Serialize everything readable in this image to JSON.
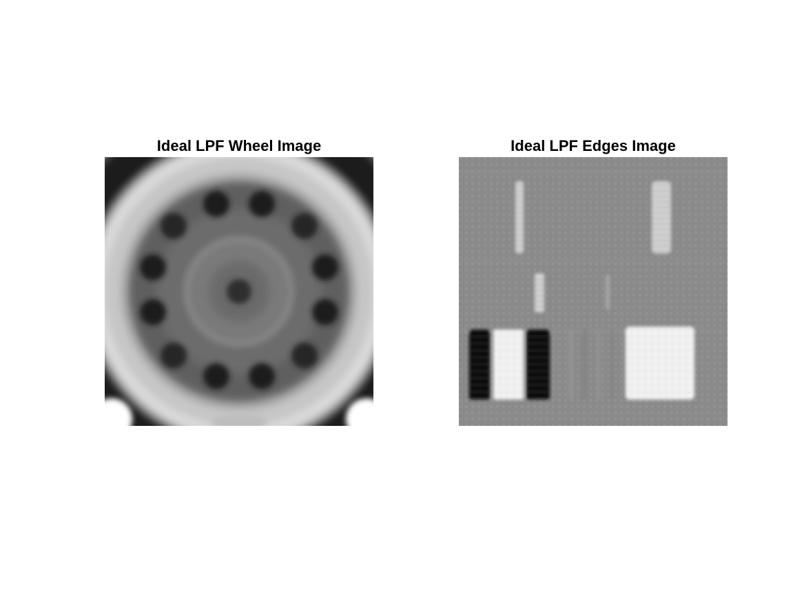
{
  "figure": {
    "panels": [
      {
        "title": "Ideal LPF Wheel Image"
      },
      {
        "title": "Ideal LPF Edges Image"
      }
    ]
  },
  "colors": {
    "background": "#ffffff",
    "title": "#000000",
    "edges_field_gray": "#8a8a8a",
    "dark": "#0a0a0a",
    "light": "#f2f2f2"
  }
}
